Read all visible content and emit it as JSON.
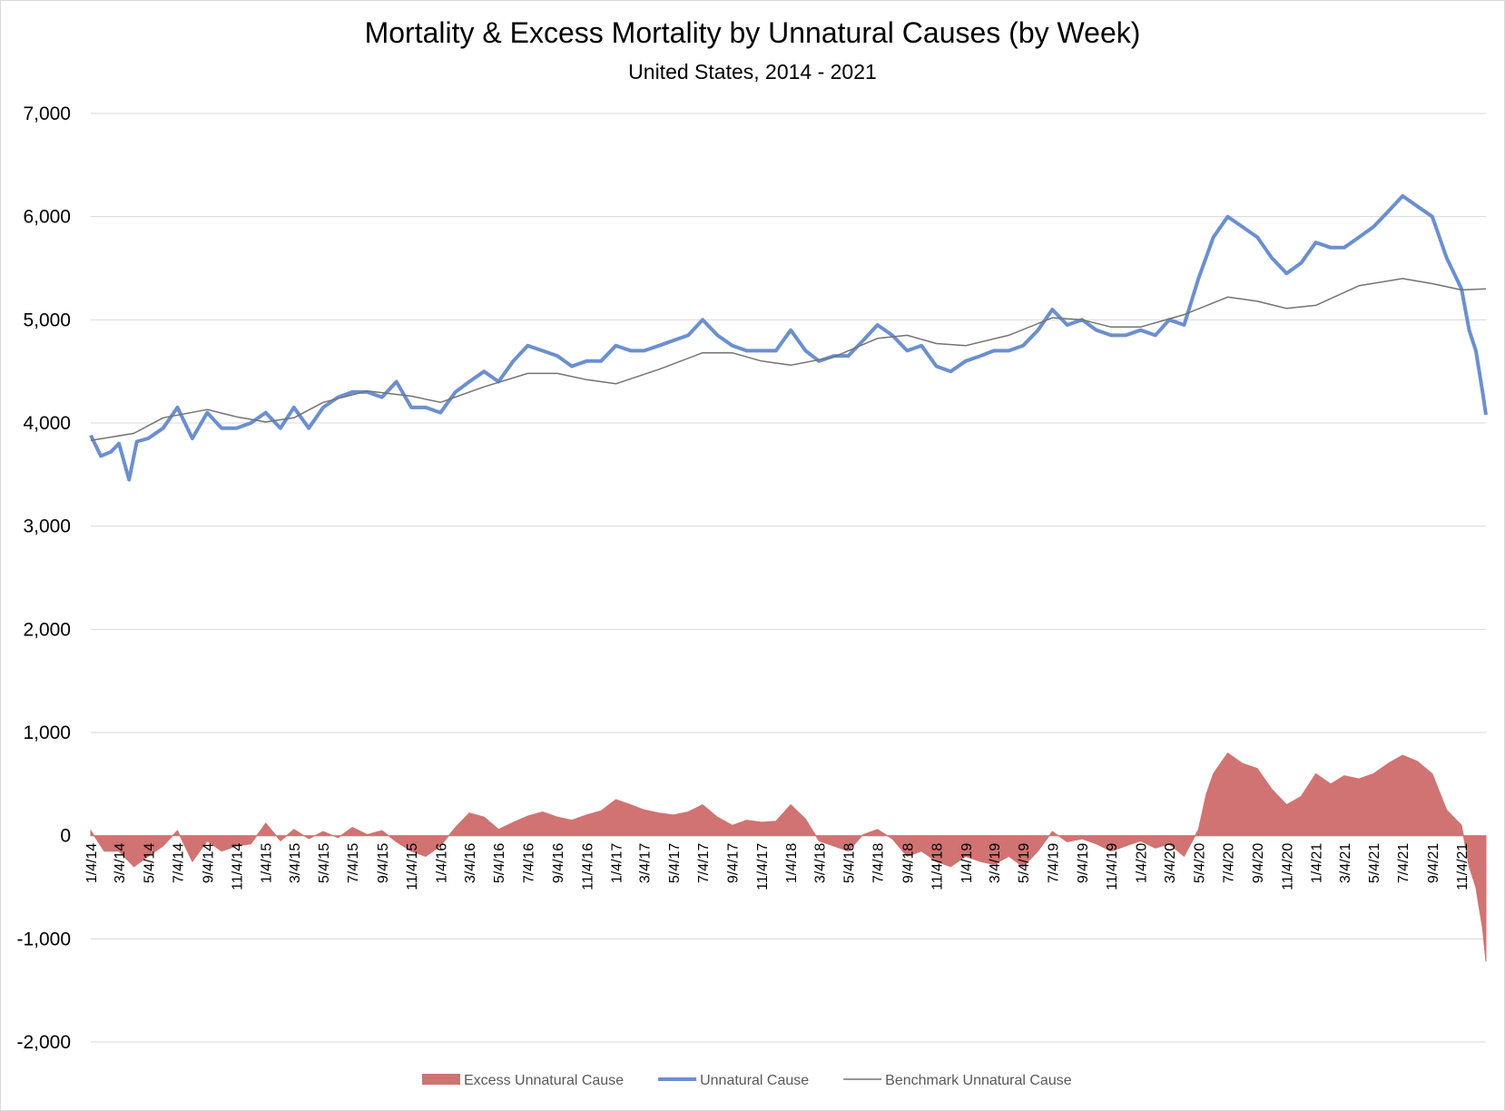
{
  "chart_data": {
    "type": "line",
    "title": "Mortality & Excess Mortality by Unnatural Causes (by Week)",
    "subtitle": "United States, 2014 - 2021",
    "ylim": [
      -2000,
      7000
    ],
    "yticks": [
      -2000,
      -1000,
      0,
      1000,
      2000,
      3000,
      4000,
      5000,
      6000,
      7000
    ],
    "ytick_labels": [
      "-2,000",
      "-1,000",
      "0",
      "1,000",
      "2,000",
      "3,000",
      "4,000",
      "5,000",
      "6,000",
      "7,000"
    ],
    "x_start": "2014-01-04",
    "x_end": "2021-12-25",
    "xtick_labels": [
      "1/4/14",
      "3/4/14",
      "5/4/14",
      "7/4/14",
      "9/4/14",
      "11/4/14",
      "1/4/15",
      "3/4/15",
      "5/4/15",
      "7/4/15",
      "9/4/15",
      "11/4/15",
      "1/4/16",
      "3/4/16",
      "5/4/16",
      "7/4/16",
      "9/4/16",
      "11/4/16",
      "1/4/17",
      "3/4/17",
      "5/4/17",
      "7/4/17",
      "9/4/17",
      "11/4/17",
      "1/4/18",
      "3/4/18",
      "5/4/18",
      "7/4/18",
      "9/4/18",
      "11/4/18",
      "1/4/19",
      "3/4/19",
      "5/4/19",
      "7/4/19",
      "9/4/19",
      "11/4/19",
      "1/4/20",
      "3/4/20",
      "5/4/20",
      "7/4/20",
      "9/4/20",
      "11/4/20",
      "1/4/21",
      "3/4/21",
      "5/4/21",
      "7/4/21",
      "9/4/21",
      "11/4/21"
    ],
    "grid": true,
    "legend_position": "bottom",
    "series": [
      {
        "name": "Excess Unnatural Cause",
        "kind": "area",
        "color": "#d07372",
        "points": [
          [
            "2014-01-04",
            50
          ],
          [
            "2014-02-01",
            -150
          ],
          [
            "2014-03-04",
            -150
          ],
          [
            "2014-04-04",
            -300
          ],
          [
            "2014-05-04",
            -200
          ],
          [
            "2014-06-04",
            -100
          ],
          [
            "2014-07-04",
            50
          ],
          [
            "2014-08-04",
            -250
          ],
          [
            "2014-09-04",
            -50
          ],
          [
            "2014-10-04",
            -150
          ],
          [
            "2014-11-04",
            -100
          ],
          [
            "2014-12-04",
            -80
          ],
          [
            "2015-01-04",
            120
          ],
          [
            "2015-02-04",
            -50
          ],
          [
            "2015-03-04",
            60
          ],
          [
            "2015-04-04",
            -30
          ],
          [
            "2015-05-04",
            40
          ],
          [
            "2015-06-04",
            -20
          ],
          [
            "2015-07-04",
            80
          ],
          [
            "2015-08-04",
            10
          ],
          [
            "2015-09-04",
            50
          ],
          [
            "2015-10-04",
            -60
          ],
          [
            "2015-11-04",
            -150
          ],
          [
            "2015-12-04",
            -200
          ],
          [
            "2016-01-04",
            -100
          ],
          [
            "2016-02-04",
            80
          ],
          [
            "2016-03-04",
            220
          ],
          [
            "2016-04-04",
            180
          ],
          [
            "2016-05-04",
            60
          ],
          [
            "2016-06-04",
            130
          ],
          [
            "2016-07-04",
            190
          ],
          [
            "2016-08-04",
            230
          ],
          [
            "2016-09-04",
            180
          ],
          [
            "2016-10-04",
            150
          ],
          [
            "2016-11-04",
            200
          ],
          [
            "2016-12-04",
            240
          ],
          [
            "2017-01-04",
            350
          ],
          [
            "2017-02-04",
            300
          ],
          [
            "2017-03-04",
            250
          ],
          [
            "2017-04-04",
            220
          ],
          [
            "2017-05-04",
            200
          ],
          [
            "2017-06-04",
            230
          ],
          [
            "2017-07-04",
            300
          ],
          [
            "2017-08-04",
            180
          ],
          [
            "2017-09-04",
            100
          ],
          [
            "2017-10-04",
            150
          ],
          [
            "2017-11-04",
            130
          ],
          [
            "2017-12-04",
            140
          ],
          [
            "2018-01-04",
            300
          ],
          [
            "2018-02-04",
            160
          ],
          [
            "2018-03-04",
            -50
          ],
          [
            "2018-04-04",
            -100
          ],
          [
            "2018-05-04",
            -150
          ],
          [
            "2018-06-04",
            10
          ],
          [
            "2018-07-04",
            60
          ],
          [
            "2018-08-04",
            -30
          ],
          [
            "2018-09-04",
            -200
          ],
          [
            "2018-10-04",
            -150
          ],
          [
            "2018-11-04",
            -250
          ],
          [
            "2018-12-04",
            -300
          ],
          [
            "2019-01-04",
            -200
          ],
          [
            "2019-02-04",
            -250
          ],
          [
            "2019-03-04",
            -280
          ],
          [
            "2019-04-04",
            -200
          ],
          [
            "2019-05-04",
            -300
          ],
          [
            "2019-06-04",
            -150
          ],
          [
            "2019-07-04",
            40
          ],
          [
            "2019-08-04",
            -60
          ],
          [
            "2019-09-04",
            -30
          ],
          [
            "2019-10-04",
            -80
          ],
          [
            "2019-11-04",
            -150
          ],
          [
            "2019-12-04",
            -100
          ],
          [
            "2020-01-04",
            -50
          ],
          [
            "2020-02-04",
            -120
          ],
          [
            "2020-03-04",
            -80
          ],
          [
            "2020-04-04",
            -200
          ],
          [
            "2020-05-04",
            60
          ],
          [
            "2020-05-20",
            400
          ],
          [
            "2020-06-04",
            600
          ],
          [
            "2020-07-04",
            800
          ],
          [
            "2020-08-04",
            700
          ],
          [
            "2020-09-04",
            650
          ],
          [
            "2020-10-04",
            450
          ],
          [
            "2020-11-04",
            300
          ],
          [
            "2020-12-04",
            380
          ],
          [
            "2021-01-04",
            600
          ],
          [
            "2021-02-04",
            500
          ],
          [
            "2021-03-04",
            580
          ],
          [
            "2021-04-04",
            550
          ],
          [
            "2021-05-04",
            600
          ],
          [
            "2021-06-04",
            700
          ],
          [
            "2021-07-04",
            780
          ],
          [
            "2021-08-04",
            720
          ],
          [
            "2021-09-04",
            600
          ],
          [
            "2021-10-04",
            250
          ],
          [
            "2021-11-04",
            100
          ],
          [
            "2021-11-20",
            -300
          ],
          [
            "2021-12-04",
            -500
          ],
          [
            "2021-12-18",
            -900
          ],
          [
            "2021-12-25",
            -1220
          ]
        ]
      },
      {
        "name": "Unnatural Cause",
        "kind": "line",
        "color": "#6b8fcf",
        "points": [
          [
            "2014-01-04",
            3880
          ],
          [
            "2014-01-25",
            3680
          ],
          [
            "2014-02-15",
            3720
          ],
          [
            "2014-03-04",
            3800
          ],
          [
            "2014-03-25",
            3450
          ],
          [
            "2014-04-10",
            3820
          ],
          [
            "2014-05-04",
            3850
          ],
          [
            "2014-06-04",
            3950
          ],
          [
            "2014-07-04",
            4150
          ],
          [
            "2014-08-04",
            3850
          ],
          [
            "2014-09-04",
            4100
          ],
          [
            "2014-10-04",
            3950
          ],
          [
            "2014-11-04",
            3950
          ],
          [
            "2014-12-04",
            4000
          ],
          [
            "2015-01-04",
            4100
          ],
          [
            "2015-02-04",
            3950
          ],
          [
            "2015-03-04",
            4150
          ],
          [
            "2015-04-04",
            3950
          ],
          [
            "2015-05-04",
            4150
          ],
          [
            "2015-06-04",
            4250
          ],
          [
            "2015-07-04",
            4300
          ],
          [
            "2015-08-04",
            4300
          ],
          [
            "2015-09-04",
            4250
          ],
          [
            "2015-10-04",
            4400
          ],
          [
            "2015-11-04",
            4150
          ],
          [
            "2015-12-04",
            4150
          ],
          [
            "2016-01-04",
            4100
          ],
          [
            "2016-02-04",
            4300
          ],
          [
            "2016-03-04",
            4400
          ],
          [
            "2016-04-04",
            4500
          ],
          [
            "2016-05-04",
            4400
          ],
          [
            "2016-06-04",
            4600
          ],
          [
            "2016-07-04",
            4750
          ],
          [
            "2016-08-04",
            4700
          ],
          [
            "2016-09-04",
            4650
          ],
          [
            "2016-10-04",
            4550
          ],
          [
            "2016-11-04",
            4600
          ],
          [
            "2016-12-04",
            4600
          ],
          [
            "2017-01-04",
            4750
          ],
          [
            "2017-02-04",
            4700
          ],
          [
            "2017-03-04",
            4700
          ],
          [
            "2017-04-04",
            4750
          ],
          [
            "2017-05-04",
            4800
          ],
          [
            "2017-06-04",
            4850
          ],
          [
            "2017-07-04",
            5000
          ],
          [
            "2017-08-04",
            4850
          ],
          [
            "2017-09-04",
            4750
          ],
          [
            "2017-10-04",
            4700
          ],
          [
            "2017-11-04",
            4700
          ],
          [
            "2017-12-04",
            4700
          ],
          [
            "2018-01-04",
            4900
          ],
          [
            "2018-02-04",
            4700
          ],
          [
            "2018-03-04",
            4600
          ],
          [
            "2018-04-04",
            4650
          ],
          [
            "2018-05-04",
            4650
          ],
          [
            "2018-06-04",
            4800
          ],
          [
            "2018-07-04",
            4950
          ],
          [
            "2018-08-04",
            4850
          ],
          [
            "2018-09-04",
            4700
          ],
          [
            "2018-10-04",
            4750
          ],
          [
            "2018-11-04",
            4550
          ],
          [
            "2018-12-04",
            4500
          ],
          [
            "2019-01-04",
            4600
          ],
          [
            "2019-02-04",
            4650
          ],
          [
            "2019-03-04",
            4700
          ],
          [
            "2019-04-04",
            4700
          ],
          [
            "2019-05-04",
            4750
          ],
          [
            "2019-06-04",
            4900
          ],
          [
            "2019-07-04",
            5100
          ],
          [
            "2019-08-04",
            4950
          ],
          [
            "2019-09-04",
            5000
          ],
          [
            "2019-10-04",
            4900
          ],
          [
            "2019-11-04",
            4850
          ],
          [
            "2019-12-04",
            4850
          ],
          [
            "2020-01-04",
            4900
          ],
          [
            "2020-02-04",
            4850
          ],
          [
            "2020-03-04",
            5000
          ],
          [
            "2020-04-04",
            4950
          ],
          [
            "2020-05-04",
            5400
          ],
          [
            "2020-06-04",
            5800
          ],
          [
            "2020-07-04",
            6000
          ],
          [
            "2020-08-04",
            5900
          ],
          [
            "2020-09-04",
            5800
          ],
          [
            "2020-10-04",
            5600
          ],
          [
            "2020-11-04",
            5450
          ],
          [
            "2020-12-04",
            5550
          ],
          [
            "2021-01-04",
            5750
          ],
          [
            "2021-02-04",
            5700
          ],
          [
            "2021-03-04",
            5700
          ],
          [
            "2021-04-04",
            5800
          ],
          [
            "2021-05-04",
            5900
          ],
          [
            "2021-06-04",
            6050
          ],
          [
            "2021-07-04",
            6200
          ],
          [
            "2021-08-04",
            6100
          ],
          [
            "2021-09-04",
            6000
          ],
          [
            "2021-10-04",
            5600
          ],
          [
            "2021-11-04",
            5300
          ],
          [
            "2021-11-20",
            4900
          ],
          [
            "2021-12-04",
            4700
          ],
          [
            "2021-12-18",
            4300
          ],
          [
            "2021-12-25",
            4080
          ]
        ]
      },
      {
        "name": "Benchmark Unnatural Cause",
        "kind": "line",
        "color": "#737373",
        "points": [
          [
            "2014-01-04",
            3830
          ],
          [
            "2014-04-04",
            3900
          ],
          [
            "2014-06-04",
            4050
          ],
          [
            "2014-09-04",
            4130
          ],
          [
            "2014-11-04",
            4060
          ],
          [
            "2015-01-04",
            4010
          ],
          [
            "2015-03-04",
            4050
          ],
          [
            "2015-05-04",
            4200
          ],
          [
            "2015-08-04",
            4310
          ],
          [
            "2015-11-04",
            4260
          ],
          [
            "2016-01-04",
            4200
          ],
          [
            "2016-04-04",
            4350
          ],
          [
            "2016-07-04",
            4480
          ],
          [
            "2016-09-04",
            4480
          ],
          [
            "2016-11-04",
            4420
          ],
          [
            "2017-01-04",
            4380
          ],
          [
            "2017-04-04",
            4520
          ],
          [
            "2017-07-04",
            4680
          ],
          [
            "2017-09-04",
            4680
          ],
          [
            "2017-11-04",
            4600
          ],
          [
            "2018-01-04",
            4560
          ],
          [
            "2018-04-04",
            4640
          ],
          [
            "2018-07-04",
            4820
          ],
          [
            "2018-09-04",
            4850
          ],
          [
            "2018-11-04",
            4770
          ],
          [
            "2019-01-04",
            4750
          ],
          [
            "2019-04-04",
            4850
          ],
          [
            "2019-07-04",
            5020
          ],
          [
            "2019-09-04",
            5000
          ],
          [
            "2019-11-04",
            4930
          ],
          [
            "2020-01-04",
            4930
          ],
          [
            "2020-04-04",
            5050
          ],
          [
            "2020-07-04",
            5220
          ],
          [
            "2020-09-04",
            5180
          ],
          [
            "2020-11-04",
            5110
          ],
          [
            "2021-01-04",
            5140
          ],
          [
            "2021-04-04",
            5330
          ],
          [
            "2021-07-04",
            5400
          ],
          [
            "2021-09-04",
            5350
          ],
          [
            "2021-11-04",
            5290
          ],
          [
            "2021-12-25",
            5300
          ]
        ]
      }
    ]
  }
}
